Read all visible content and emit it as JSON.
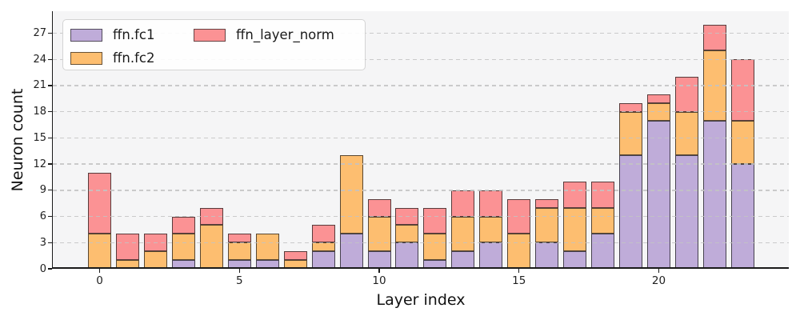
{
  "chart_data": {
    "type": "bar",
    "stacked": true,
    "title": "",
    "xlabel": "Layer index",
    "ylabel": "Neuron count",
    "x": [
      0,
      1,
      2,
      3,
      4,
      5,
      6,
      7,
      8,
      9,
      10,
      11,
      12,
      13,
      14,
      15,
      16,
      17,
      18,
      19,
      20,
      21,
      22,
      23
    ],
    "series": [
      {
        "name": "ffn.fc1",
        "color": "#bfacd9",
        "values": [
          0,
          0,
          0,
          1,
          0,
          1,
          1,
          0,
          2,
          4,
          2,
          3,
          1,
          2,
          3,
          0,
          3,
          2,
          4,
          13,
          17,
          13,
          17,
          12
        ]
      },
      {
        "name": "ffn.fc2",
        "color": "#fdbe70",
        "values": [
          4,
          1,
          2,
          3,
          5,
          2,
          3,
          1,
          1,
          9,
          4,
          2,
          3,
          4,
          3,
          4,
          4,
          5,
          3,
          5,
          2,
          5,
          8,
          5
        ]
      },
      {
        "name": "ffn_layer_norm",
        "color": "#fb9294",
        "values": [
          7,
          3,
          2,
          2,
          2,
          1,
          0,
          1,
          2,
          0,
          2,
          2,
          3,
          3,
          3,
          4,
          1,
          3,
          3,
          1,
          1,
          4,
          3,
          7
        ]
      }
    ],
    "totals": [
      11,
      4,
      4,
      6,
      7,
      4,
      4,
      2,
      5,
      13,
      8,
      7,
      7,
      9,
      9,
      8,
      8,
      10,
      10,
      19,
      20,
      22,
      28,
      24
    ],
    "yticks": [
      0,
      3,
      6,
      9,
      12,
      15,
      18,
      21,
      24,
      27
    ],
    "xticks": [
      0,
      5,
      10,
      15,
      20
    ],
    "ylim": [
      0,
      29.5
    ],
    "grid": "horizontal-dashed",
    "legend_position": "upper-left",
    "plot_background": "#f5f5f6",
    "bar_edge_color": "rgba(25,25,25,0.72)"
  }
}
